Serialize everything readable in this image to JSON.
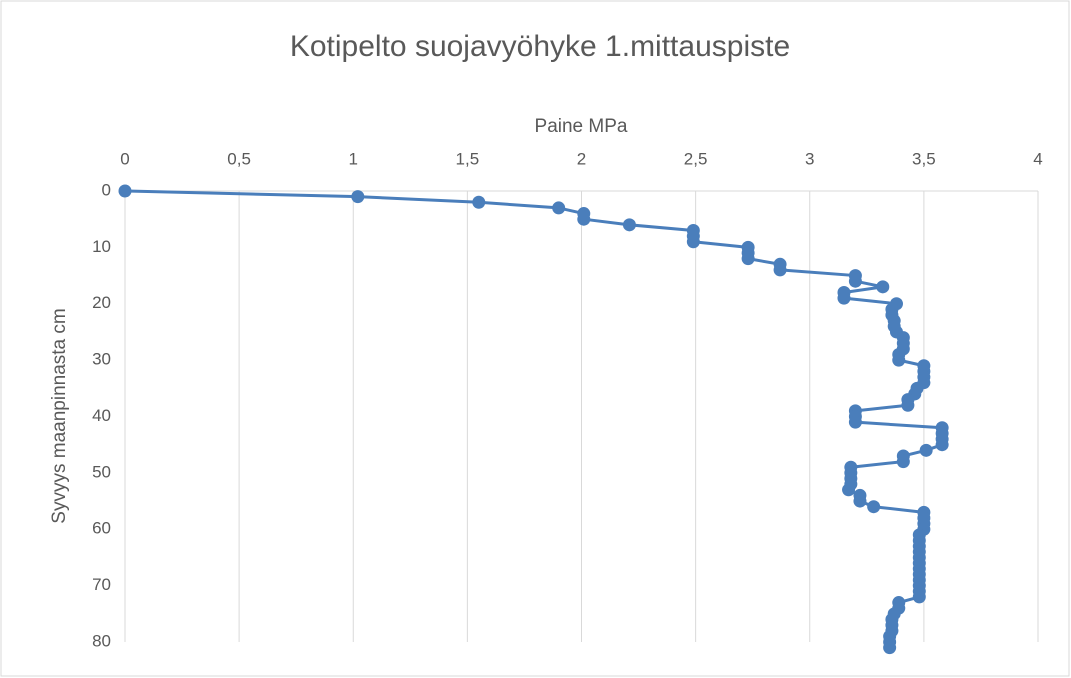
{
  "chart_data": {
    "type": "line",
    "title": "Kotipelto suojavyöhyke 1.mittauspiste",
    "x_label": "Paine MPa",
    "y_label": "Syvyys maanpinnasta cm",
    "x": [
      0,
      1.02,
      1.55,
      1.9,
      2.01,
      2.01,
      2.21,
      2.49,
      2.49,
      2.49,
      2.73,
      2.73,
      2.73,
      2.87,
      2.87,
      3.2,
      3.2,
      3.32,
      3.15,
      3.15,
      3.38,
      3.36,
      3.36,
      3.37,
      3.37,
      3.38,
      3.41,
      3.41,
      3.41,
      3.39,
      3.39,
      3.5,
      3.5,
      3.5,
      3.5,
      3.47,
      3.46,
      3.43,
      3.43,
      3.2,
      3.2,
      3.2,
      3.58,
      3.58,
      3.58,
      3.58,
      3.51,
      3.41,
      3.41,
      3.18,
      3.18,
      3.18,
      3.18,
      3.17,
      3.22,
      3.22,
      3.28,
      3.5,
      3.5,
      3.5,
      3.5,
      3.48,
      3.48,
      3.48,
      3.48,
      3.48,
      3.48,
      3.48,
      3.48,
      3.48,
      3.48,
      3.48,
      3.48,
      3.39,
      3.39,
      3.37,
      3.36,
      3.36,
      3.36,
      3.35,
      3.35,
      3.35
    ],
    "values": [
      0,
      1,
      2,
      3,
      4,
      5,
      6,
      7,
      8,
      9,
      10,
      11,
      12,
      13,
      14,
      15,
      16,
      17,
      18,
      19,
      20,
      21,
      22,
      23,
      24,
      25,
      26,
      27,
      28,
      29,
      30,
      31,
      32,
      33,
      34,
      35,
      36,
      37,
      38,
      39,
      40,
      41,
      42,
      43,
      44,
      45,
      46,
      47,
      48,
      49,
      50,
      51,
      52,
      53,
      54,
      55,
      56,
      57,
      58,
      59,
      60,
      61,
      62,
      63,
      64,
      65,
      66,
      67,
      68,
      69,
      70,
      71,
      72,
      73,
      74,
      75,
      76,
      77,
      78,
      79,
      80,
      81
    ],
    "color": "#4a7ebb",
    "xlim": [
      0,
      4
    ],
    "xticks": [
      0,
      {
        "value": 0.5,
        "label": "0,5"
      },
      1,
      {
        "value": 1.5,
        "label": "1,5"
      },
      2,
      {
        "value": 2.5,
        "label": "2,5"
      },
      3,
      {
        "value": 3.5,
        "label": "3,5"
      },
      4
    ],
    "ylim": [
      0,
      80
    ],
    "yticks": [
      0,
      10,
      20,
      30,
      40,
      50,
      60,
      70,
      80
    ],
    "y_inverted": true,
    "x_axis_position": "top",
    "grid": true
  }
}
